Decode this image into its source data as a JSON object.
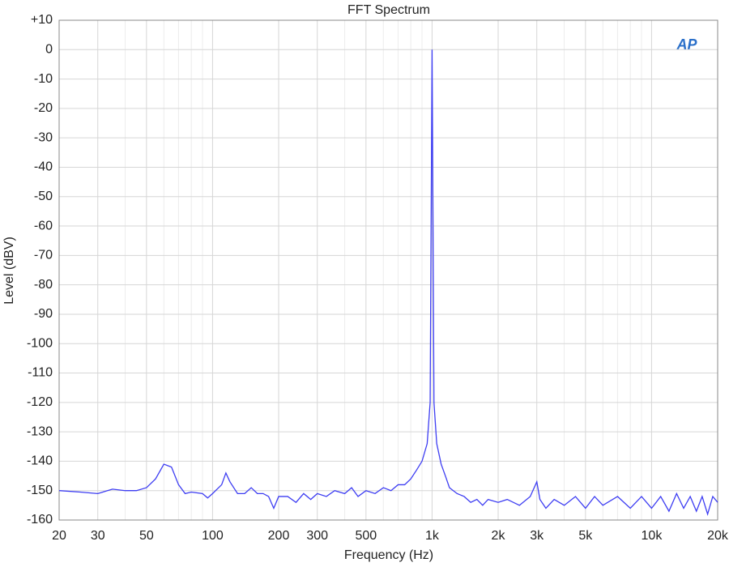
{
  "chart_data": {
    "type": "line",
    "title": "FFT Spectrum",
    "x_label": "Frequency (Hz)",
    "y_label": "Level (dBV)",
    "logo": "AP",
    "x_log": true,
    "grid": true,
    "xlim": [
      20,
      20000
    ],
    "xticks": [
      20,
      30,
      50,
      100,
      200,
      300,
      500,
      {
        "value": 1000,
        "label": "1k"
      },
      {
        "value": 2000,
        "label": "2k"
      },
      {
        "value": 3000,
        "label": "3k"
      },
      {
        "value": 5000,
        "label": "5k"
      },
      {
        "value": 10000,
        "label": "10k"
      },
      {
        "value": 20000,
        "label": "20k"
      }
    ],
    "x_minor_ticks": [
      40,
      60,
      70,
      80,
      90,
      400,
      600,
      700,
      800,
      900,
      4000,
      6000,
      7000,
      8000,
      9000
    ],
    "ylim": [
      -160,
      10
    ],
    "yticks": [
      -160,
      -150,
      -140,
      -130,
      -120,
      -110,
      -100,
      -90,
      -80,
      -70,
      -60,
      -50,
      -40,
      -30,
      -20,
      -10,
      0,
      {
        "value": 10,
        "label": "+10"
      }
    ],
    "series": [
      {
        "name": "Level",
        "color": "#3d3df2",
        "x": [
          20,
          25,
          30,
          35,
          40,
          45,
          50,
          55,
          60,
          65,
          70,
          75,
          80,
          90,
          95,
          100,
          110,
          115,
          120,
          130,
          140,
          150,
          160,
          170,
          180,
          190,
          200,
          220,
          240,
          260,
          280,
          300,
          330,
          360,
          400,
          430,
          460,
          500,
          550,
          600,
          650,
          700,
          750,
          800,
          850,
          900,
          950,
          980,
          990,
          1000,
          1010,
          1020,
          1050,
          1100,
          1150,
          1200,
          1300,
          1400,
          1500,
          1600,
          1700,
          1800,
          2000,
          2200,
          2500,
          2800,
          3000,
          3100,
          3300,
          3600,
          4000,
          4500,
          5000,
          5500,
          6000,
          7000,
          8000,
          9000,
          10000,
          11000,
          12000,
          13000,
          14000,
          15000,
          16000,
          17000,
          18000,
          19000,
          20000
        ],
        "values": [
          -150,
          -150.5,
          -151,
          -149.5,
          -150,
          -150,
          -149,
          -146,
          -141,
          -142,
          -148,
          -151,
          -150.5,
          -151,
          -152.5,
          -151,
          -148,
          -144,
          -147,
          -151,
          -151,
          -149,
          -151,
          -151,
          -152,
          -156,
          -152,
          -152,
          -154,
          -151,
          -153,
          -151,
          -152,
          -150,
          -151,
          -149,
          -152,
          -150,
          -151,
          -149,
          -150,
          -148,
          -148,
          -146,
          -143,
          -140,
          -134,
          -120,
          -60,
          0,
          -60,
          -120,
          -134,
          -141,
          -145,
          -149,
          -151,
          -152,
          -154,
          -153,
          -155,
          -153,
          -154,
          -153,
          -155,
          -152,
          -147,
          -153,
          -156,
          -153,
          -155,
          -152,
          -156,
          -152,
          -155,
          -152,
          -156,
          -152,
          -156,
          -152,
          -157,
          -151,
          -156,
          -152,
          -157,
          -152,
          -158,
          -152,
          -154
        ]
      }
    ]
  }
}
